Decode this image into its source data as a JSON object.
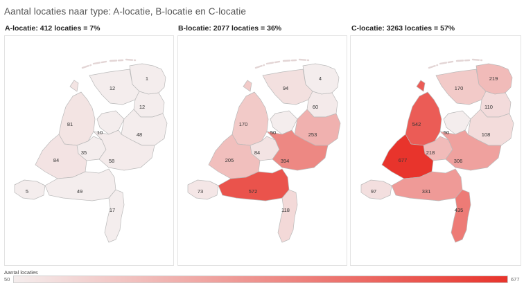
{
  "title": "Aantal locaties naar type: A-locatie, B-locatie en C-locatie",
  "legend": {
    "title": "Aantal locaties",
    "min": "50",
    "max": "677",
    "min_value": 50,
    "max_value": 677,
    "color_low": "#f4eded",
    "color_high": "#e8342c"
  },
  "panels": [
    {
      "title": "A-locatie: 412 locaties = 7%",
      "values": {
        "groningen": 1,
        "friesland": 12,
        "drenthe": 12,
        "noord_holland": 81,
        "flevoland": 10,
        "overijssel": 48,
        "utrecht": 35,
        "gelderland": 58,
        "zuid_holland": 84,
        "zeeland": 5,
        "noord_brabant": 49,
        "limburg": 17
      },
      "labels": {
        "groningen": "1",
        "friesland": "12",
        "drenthe": "12",
        "noord_holland": "81",
        "flevoland": "10",
        "overijssel": "48",
        "utrecht": "35",
        "gelderland": "58",
        "zuid_holland": "84",
        "zeeland": "5",
        "noord_brabant": "49",
        "limburg": "17"
      }
    },
    {
      "title": "B-locatie: 2077 locaties = 36%",
      "values": {
        "groningen": 4,
        "friesland": 94,
        "drenthe": 60,
        "noord_holland": 170,
        "flevoland": 50,
        "overijssel": 253,
        "utrecht": 84,
        "gelderland": 394,
        "zuid_holland": 205,
        "zeeland": 73,
        "noord_brabant": 572,
        "limburg": 118
      },
      "labels": {
        "groningen": "4",
        "friesland": "94",
        "drenthe": "60",
        "noord_holland": "170",
        "flevoland": "50",
        "overijssel": "253",
        "utrecht": "84",
        "gelderland": "394",
        "zuid_holland": "205",
        "zeeland": "73",
        "noord_brabant": "572",
        "limburg": "118"
      }
    },
    {
      "title": "C-locatie: 3263 locaties = 57%",
      "values": {
        "groningen": 219,
        "friesland": 170,
        "drenthe": 110,
        "noord_holland": 542,
        "flevoland": 50,
        "overijssel": 108,
        "utrecht": 218,
        "gelderland": 306,
        "zuid_holland": 677,
        "zeeland": 97,
        "noord_brabant": 331,
        "limburg": 435
      },
      "labels": {
        "groningen": "219",
        "friesland": "170",
        "drenthe": "110",
        "noord_holland": "542",
        "flevoland": "50",
        "overijssel": "108",
        "utrecht": "218",
        "gelderland": "306",
        "zuid_holland": "677",
        "zeeland": "97",
        "noord_brabant": "331",
        "limburg": "435"
      }
    }
  ]
}
